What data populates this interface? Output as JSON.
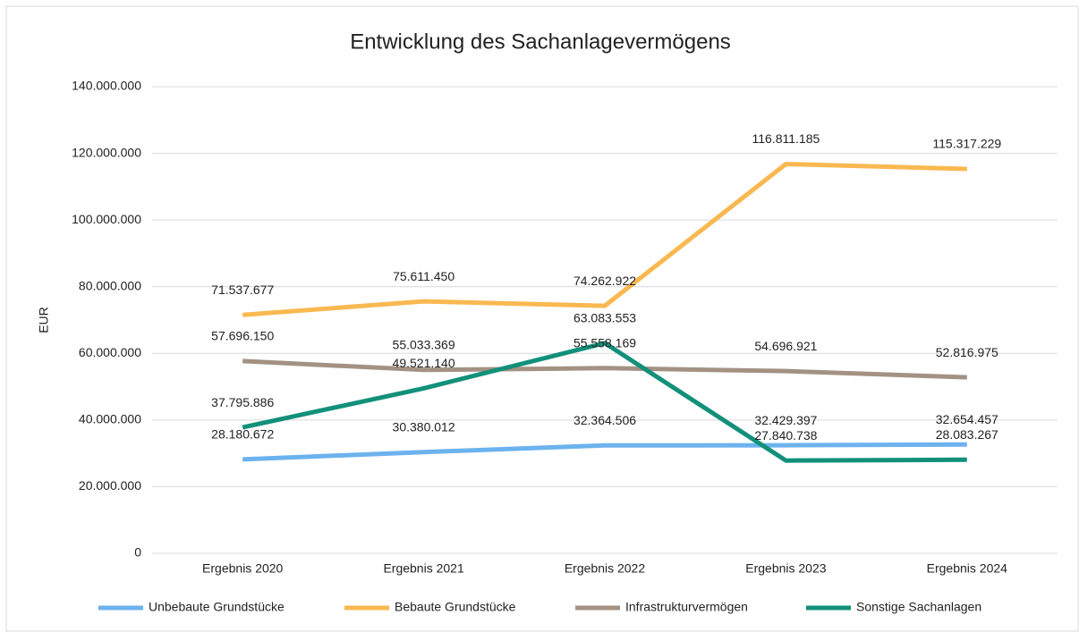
{
  "chart_data": {
    "type": "line",
    "title": "Entwicklung des Sachanlagevermögens",
    "y_label": "EUR",
    "categories": [
      "Ergebnis 2020",
      "Ergebnis 2021",
      "Ergebnis 2022",
      "Ergebnis 2023",
      "Ergebnis 2024"
    ],
    "ylim": [
      0,
      140000000
    ],
    "yticks": [
      0,
      {
        "value": 20000000,
        "label": "20.000.000"
      },
      {
        "value": 40000000,
        "label": "40.000.000"
      },
      {
        "value": 60000000,
        "label": "60.000.000"
      },
      {
        "value": 80000000,
        "label": "80.000.000"
      },
      {
        "value": 100000000,
        "label": "100.000.000"
      },
      {
        "value": 120000000,
        "label": "120.000.000"
      },
      {
        "value": 140000000,
        "label": "140.000.000"
      }
    ],
    "grid": true,
    "legend": "bottom",
    "series": [
      {
        "name": "Unbebaute Grundstücke",
        "color": "#6cb2ee",
        "values": [
          28180672,
          30380012,
          32364506,
          32429397,
          32654457
        ],
        "value_labels": [
          "28.180.672",
          "30.380.012",
          "32.364.506",
          "32.429.397",
          "32.654.457"
        ]
      },
      {
        "name": "Bebaute Grundstücke",
        "color": "#f9b850",
        "values": [
          71537677,
          75611450,
          74262922,
          116811185,
          115317229
        ],
        "value_labels": [
          "71.537.677",
          "75.611.450",
          "74.262.922",
          "116.811.185",
          "115.317.229"
        ]
      },
      {
        "name": "Infrastrukturvermögen",
        "color": "#a39283",
        "values": [
          57696150,
          55033369,
          55558169,
          54696921,
          52816975
        ],
        "value_labels": [
          "57.696.150",
          "55.033.369",
          "55.558.169",
          "54.696.921",
          "52.816.975"
        ]
      },
      {
        "name": "Sonstige Sachanlagen",
        "color": "#12907a",
        "values": [
          37795886,
          49521140,
          63083553,
          27840738,
          28083267
        ],
        "value_labels": [
          "37.795.886",
          "49.521.140",
          "63.083.553",
          "27.840.738",
          "28.083.267"
        ]
      }
    ]
  }
}
